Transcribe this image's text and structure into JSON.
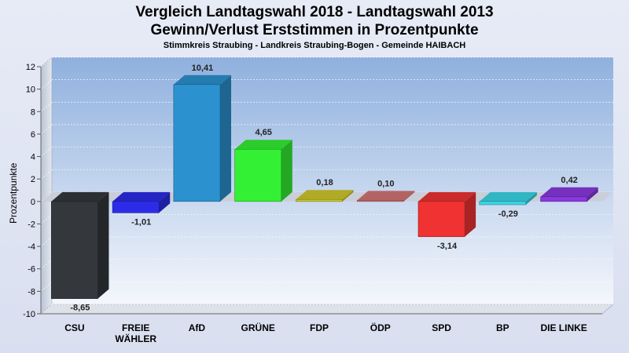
{
  "chart_data": {
    "type": "bar",
    "title": "Vergleich Landtagswahl 2018 - Landtagswahl 2013",
    "title_line2": "Gewinn/Verlust Erststimmen in Prozentpunkte",
    "subtitle": "Stimmkreis Straubing - Landkreis Straubing-Bogen - Gemeinde HAIBACH",
    "xlabel": "",
    "ylabel": "Prozentpunkte",
    "ylim": [
      -10,
      12
    ],
    "yticks": [
      -10,
      -8,
      -6,
      -4,
      -2,
      0,
      2,
      4,
      6,
      8,
      10,
      12
    ],
    "grid": true,
    "categories": [
      "CSU",
      "FREIE WÄHLER",
      "AfD",
      "GRÜNE",
      "FDP",
      "ÖDP",
      "SPD",
      "BP",
      "DIE LINKE"
    ],
    "values": [
      -8.65,
      -1.01,
      10.41,
      4.65,
      0.18,
      0.1,
      -3.14,
      -0.29,
      0.42
    ],
    "value_labels": [
      "-8,65",
      "-1,01",
      "10,41",
      "4,65",
      "0,18",
      "0,10",
      "-3,14",
      "-0,29",
      "0,42"
    ],
    "colors": [
      "#34373c",
      "#2c2ce8",
      "#2b92cf",
      "#34f034",
      "#cfc82a",
      "#d47474",
      "#f03232",
      "#3ad6e6",
      "#8a38e0"
    ]
  }
}
